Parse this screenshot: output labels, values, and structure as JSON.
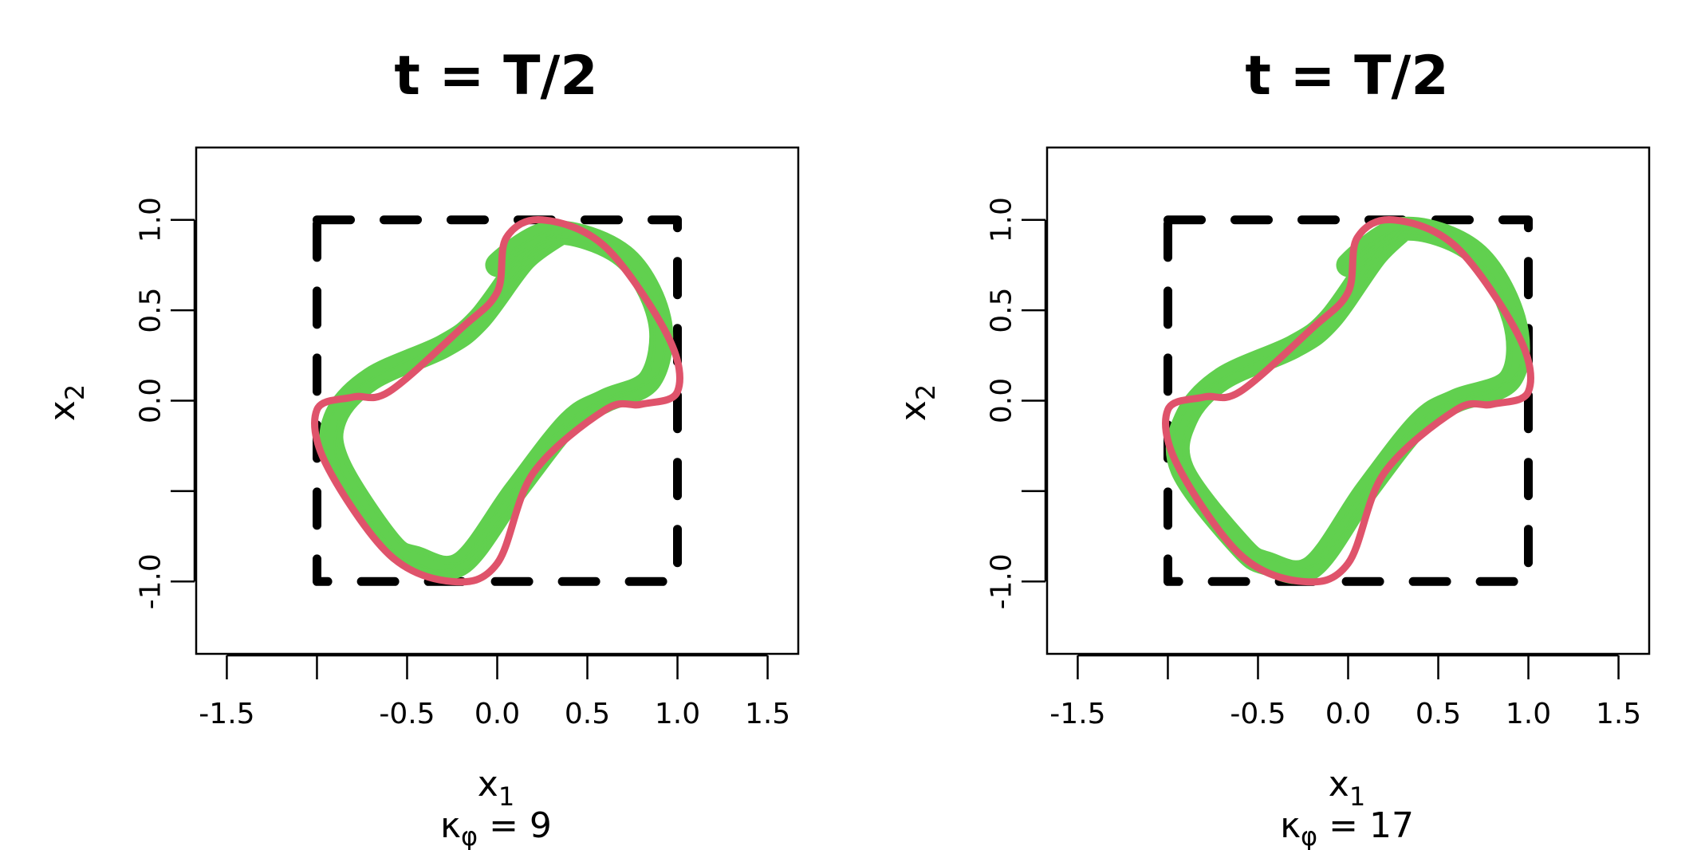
{
  "chart_data": [
    {
      "type": "line",
      "title": "t = T/2",
      "xlabel": {
        "main": "x",
        "sub": "1"
      },
      "ylabel": {
        "main": "x",
        "sub": "2"
      },
      "caption": {
        "symbol": "κ",
        "sub": "φ",
        "rest": " = 9"
      },
      "xlim": [
        -1.67,
        1.67
      ],
      "ylim": [
        -1.4,
        1.4
      ],
      "xticks": [
        -1.5,
        -1.0,
        -0.5,
        0.0,
        0.5,
        1.0,
        1.5
      ],
      "xtick_labels": [
        "-1.5",
        "",
        "-0.5",
        "0.0",
        "0.5",
        "1.0",
        "1.5"
      ],
      "yticks": [
        -1.0,
        -0.5,
        0.0,
        0.5,
        1.0
      ],
      "ytick_labels": [
        "-1.0",
        "",
        "0.0",
        "0.5",
        "1.0"
      ],
      "grid": false,
      "series": [
        {
          "role": "reference-square",
          "style": "dashed",
          "color": "#000000",
          "x": [
            -1,
            1,
            1,
            -1,
            -1
          ],
          "y": [
            1,
            1,
            -1,
            -1,
            1
          ]
        },
        {
          "role": "realizations",
          "style": "band",
          "color": "#61D04F",
          "x": [
            0.0,
            0.3,
            0.7,
            0.9,
            0.85,
            0.6,
            0.4,
            0.1,
            -0.2,
            -0.45,
            -0.6,
            -0.88,
            -0.9,
            -0.7,
            -0.3,
            -0.1,
            0.15,
            0.35,
            0.0
          ],
          "y": [
            0.75,
            0.93,
            0.8,
            0.45,
            0.12,
            0.0,
            -0.12,
            -0.5,
            -0.9,
            -0.87,
            -0.78,
            -0.35,
            -0.1,
            0.12,
            0.3,
            0.45,
            0.78,
            0.93,
            0.75
          ]
        },
        {
          "role": "reference-curve",
          "style": "solid",
          "color": "#DF536B",
          "x": [
            0.0,
            0.05,
            0.25,
            0.6,
            0.95,
            1.0,
            0.8,
            0.6,
            0.2,
            0.0,
            -0.25,
            -0.6,
            -0.95,
            -1.0,
            -0.8,
            -0.6,
            -0.2,
            0.0
          ],
          "y": [
            0.6,
            0.9,
            1.0,
            0.85,
            0.35,
            0.05,
            -0.02,
            -0.05,
            -0.4,
            -0.9,
            -1.0,
            -0.85,
            -0.35,
            -0.05,
            0.02,
            0.05,
            0.4,
            0.6
          ]
        }
      ]
    },
    {
      "type": "line",
      "title": "t = T/2",
      "xlabel": {
        "main": "x",
        "sub": "1"
      },
      "ylabel": {
        "main": "x",
        "sub": "2"
      },
      "caption": {
        "symbol": "κ",
        "sub": "φ",
        "rest": " = 17"
      },
      "xlim": [
        -1.67,
        1.67
      ],
      "ylim": [
        -1.4,
        1.4
      ],
      "xticks": [
        -1.5,
        -1.0,
        -0.5,
        0.0,
        0.5,
        1.0,
        1.5
      ],
      "xtick_labels": [
        "-1.5",
        "",
        "-0.5",
        "0.0",
        "0.5",
        "1.0",
        "1.5"
      ],
      "yticks": [
        -1.0,
        -0.5,
        0.0,
        0.5,
        1.0
      ],
      "ytick_labels": [
        "-1.0",
        "",
        "0.0",
        "0.5",
        "1.0"
      ],
      "grid": false,
      "series": [
        {
          "role": "reference-square",
          "style": "dashed",
          "color": "#000000",
          "x": [
            -1,
            1,
            1,
            -1,
            -1
          ],
          "y": [
            1,
            1,
            -1,
            -1,
            1
          ]
        },
        {
          "role": "realizations",
          "style": "band",
          "color": "#61D04F",
          "x": [
            0.0,
            0.3,
            0.7,
            0.92,
            0.9,
            0.6,
            0.4,
            0.1,
            -0.2,
            -0.45,
            -0.6,
            -0.92,
            -0.9,
            -0.7,
            -0.3,
            -0.1,
            0.15,
            0.3,
            0.0
          ],
          "y": [
            0.75,
            0.95,
            0.82,
            0.45,
            0.12,
            0.0,
            -0.12,
            -0.5,
            -0.92,
            -0.9,
            -0.8,
            -0.38,
            -0.1,
            0.12,
            0.3,
            0.45,
            0.8,
            0.95,
            0.75
          ]
        },
        {
          "role": "reference-curve",
          "style": "solid",
          "color": "#DF536B",
          "x": [
            0.0,
            0.05,
            0.25,
            0.6,
            0.95,
            1.0,
            0.8,
            0.6,
            0.2,
            0.0,
            -0.25,
            -0.6,
            -0.95,
            -1.0,
            -0.8,
            -0.6,
            -0.2,
            0.0
          ],
          "y": [
            0.6,
            0.9,
            1.0,
            0.85,
            0.35,
            0.05,
            -0.02,
            -0.05,
            -0.4,
            -0.9,
            -1.0,
            -0.85,
            -0.35,
            -0.05,
            0.02,
            0.05,
            0.4,
            0.6
          ]
        }
      ]
    }
  ]
}
